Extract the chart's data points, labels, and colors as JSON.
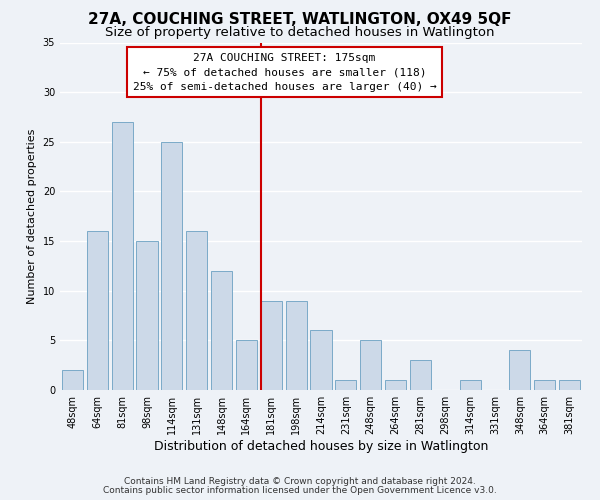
{
  "title": "27A, COUCHING STREET, WATLINGTON, OX49 5QF",
  "subtitle": "Size of property relative to detached houses in Watlington",
  "xlabel": "Distribution of detached houses by size in Watlington",
  "ylabel": "Number of detached properties",
  "bar_labels": [
    "48sqm",
    "64sqm",
    "81sqm",
    "98sqm",
    "114sqm",
    "131sqm",
    "148sqm",
    "164sqm",
    "181sqm",
    "198sqm",
    "214sqm",
    "231sqm",
    "248sqm",
    "264sqm",
    "281sqm",
    "298sqm",
    "314sqm",
    "331sqm",
    "348sqm",
    "364sqm",
    "381sqm"
  ],
  "bar_values": [
    2,
    16,
    27,
    15,
    25,
    16,
    12,
    5,
    9,
    9,
    6,
    1,
    5,
    1,
    3,
    0,
    1,
    0,
    4,
    1,
    1
  ],
  "bar_color": "#ccd9e8",
  "bar_edge_color": "#7aaac8",
  "vline_color": "#cc0000",
  "ylim": [
    0,
    35
  ],
  "yticks": [
    0,
    5,
    10,
    15,
    20,
    25,
    30,
    35
  ],
  "annotation_title": "27A COUCHING STREET: 175sqm",
  "annotation_line1": "← 75% of detached houses are smaller (118)",
  "annotation_line2": "25% of semi-detached houses are larger (40) →",
  "annotation_box_facecolor": "#ffffff",
  "annotation_box_edgecolor": "#cc0000",
  "footer_line1": "Contains HM Land Registry data © Crown copyright and database right 2024.",
  "footer_line2": "Contains public sector information licensed under the Open Government Licence v3.0.",
  "background_color": "#eef2f7",
  "grid_color": "#ffffff",
  "title_fontsize": 11,
  "subtitle_fontsize": 9.5,
  "xlabel_fontsize": 9,
  "ylabel_fontsize": 8,
  "tick_fontsize": 7,
  "annotation_fontsize": 8,
  "footer_fontsize": 6.5
}
